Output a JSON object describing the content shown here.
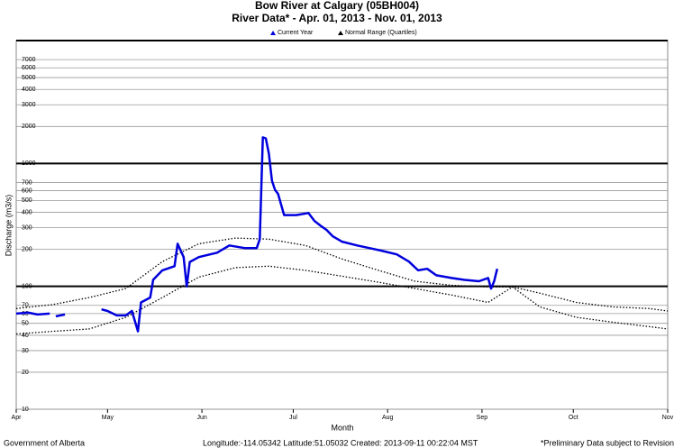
{
  "chart_data": {
    "type": "line",
    "title": "Bow River at Calgary (05BH004)",
    "subtitle": "River Data* - Apr. 01, 2013 - Nov. 01, 2013",
    "y_label": "Discharge (m3/s)",
    "x_label": "Month",
    "log_scale": true,
    "grid": true,
    "xlim": [
      0,
      214
    ],
    "xticks": [
      {
        "value": 0,
        "label": "Apr"
      },
      {
        "value": 30,
        "label": "May"
      },
      {
        "value": 61,
        "label": "Jun"
      },
      {
        "value": 91,
        "label": "Jul"
      },
      {
        "value": 122,
        "label": "Aug"
      },
      {
        "value": 153,
        "label": "Sep"
      },
      {
        "value": 183,
        "label": "Oct"
      },
      {
        "value": 214,
        "label": "Nov"
      }
    ],
    "ylim": [
      10,
      10000
    ],
    "yticks": [
      10,
      20,
      30,
      40,
      50,
      60,
      70,
      100,
      200,
      300,
      400,
      500,
      600,
      700,
      1000,
      2000,
      3000,
      4000,
      5000,
      6000,
      7000
    ],
    "series": [
      {
        "name": "Current Year",
        "color": "#0000dd",
        "x": [
          0,
          4,
          7,
          11,
          12,
          13,
          16,
          22,
          28,
          30,
          33,
          36,
          38,
          40,
          41,
          44,
          45,
          48,
          52,
          53,
          55,
          56,
          57,
          60,
          66,
          70,
          75,
          79,
          80,
          81,
          82,
          83,
          84,
          85,
          86,
          88,
          92,
          96,
          98,
          100,
          102,
          104,
          107,
          112,
          116,
          120,
          125,
          129,
          132,
          135,
          138,
          143,
          147,
          152,
          155,
          156,
          157,
          158
        ],
        "values": [
          60,
          61,
          59,
          60,
          null,
          57,
          59,
          null,
          65,
          63,
          58,
          58,
          63,
          43,
          74,
          81,
          113,
          135,
          146,
          222,
          173,
          100,
          158,
          173,
          188,
          215,
          205,
          205,
          242,
          1631,
          1600,
          1200,
          725,
          610,
          565,
          380,
          380,
          395,
          340,
          311,
          287,
          255,
          231,
          215,
          205,
          195,
          182,
          159,
          135,
          139,
          123,
          117,
          113,
          110,
          117,
          96,
          110,
          139
        ]
      },
      {
        "name": "Normal Range (Quartiles)",
        "color": "#000000",
        "x": [
          0,
          12,
          24,
          36,
          48,
          60,
          72,
          83,
          95,
          107,
          119,
          131,
          143,
          155,
          163,
          172,
          184,
          196,
          208,
          214
        ],
        "high": [
          66,
          71,
          81,
          96,
          159,
          222,
          247,
          242,
          215,
          167,
          135,
          110,
          102,
          99,
          99,
          88,
          74,
          68,
          66,
          63
        ],
        "low": [
          41,
          43,
          45,
          56,
          81,
          119,
          142,
          146,
          135,
          121,
          108,
          96,
          85,
          74,
          99,
          68,
          56,
          51,
          47,
          45
        ]
      }
    ]
  },
  "footer": {
    "left": "Government of Alberta",
    "center": "Longitude:-114.05342 Latitude:51.05032   Created: 2013-09-11 00:22:04 MST",
    "right": "*Preliminary Data subject to Revision"
  }
}
